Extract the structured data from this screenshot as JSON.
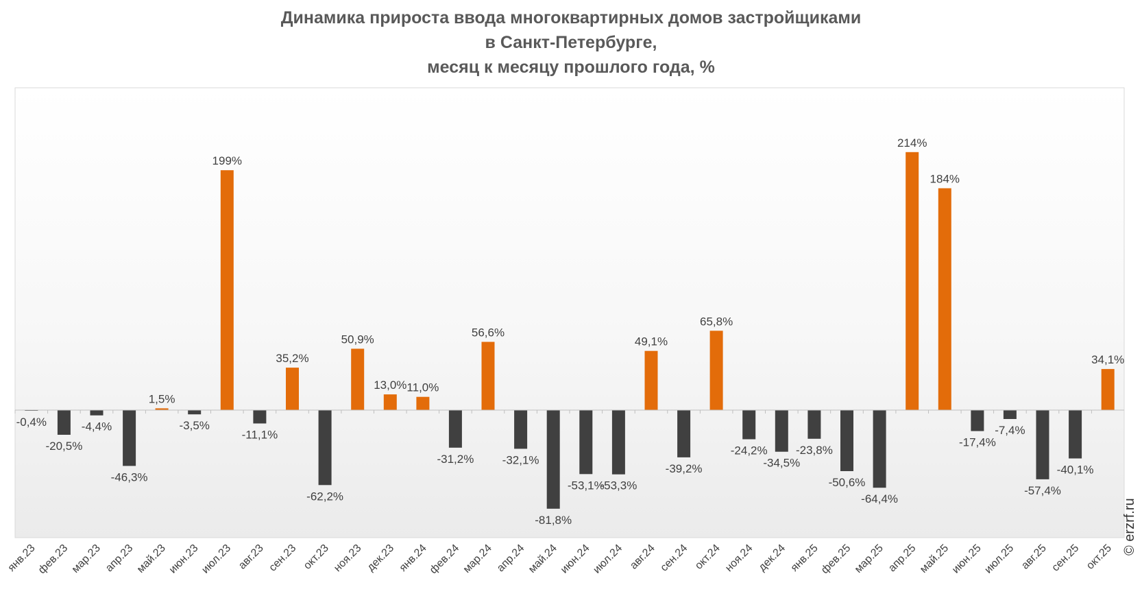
{
  "title": {
    "line1": "Динамика прироста ввода многоквартирных домов застройщиками",
    "line2": "в Санкт-Петербурге,",
    "line3": "месяц к месяцу прошлого года, %"
  },
  "watermark": "© erzrf.ru",
  "colors": {
    "positive": "#E36C0A",
    "negative": "#404040",
    "label": "#404040"
  },
  "chart_data": {
    "type": "bar",
    "title": "Динамика прироста ввода многоквартирных домов застройщиками в Санкт-Петербурге, месяц к месяцу прошлого года, %",
    "ylim": [
      -100,
      240
    ],
    "grid": false,
    "legend": "none",
    "categories": [
      "янв.23",
      "фев.23",
      "мар.23",
      "апр.23",
      "май.23",
      "июн.23",
      "июл.23",
      "авг.23",
      "сен.23",
      "окт.23",
      "ноя.23",
      "дек.23",
      "янв.24",
      "фев.24",
      "мар.24",
      "апр.24",
      "май.24",
      "июн.24",
      "июл.24",
      "авг.24",
      "сен.24",
      "окт.24",
      "ноя.24",
      "дек.24",
      "янв.25",
      "фев.25",
      "мар.25",
      "апр.25",
      "май.25",
      "июн.25",
      "июл.25",
      "авг.25",
      "сен.25",
      "окт.25"
    ],
    "values": [
      -0.4,
      -20.5,
      -4.4,
      -46.3,
      1.5,
      -3.5,
      199,
      -11.1,
      35.2,
      -62.2,
      50.9,
      13.0,
      11.0,
      -31.2,
      56.6,
      -32.1,
      -81.8,
      -53.1,
      -53.3,
      49.1,
      -39.2,
      65.8,
      -24.2,
      -34.5,
      -23.8,
      -50.6,
      -64.4,
      214,
      184,
      -17.4,
      -7.4,
      -57.4,
      -40.1,
      34.1
    ],
    "labels": [
      "-0,4%",
      "-20,5%",
      "-4,4%",
      "-46,3%",
      "1,5%",
      "-3,5%",
      "199%",
      "-11,1%",
      "35,2%",
      "-62,2%",
      "50,9%",
      "13,0%",
      "11,0%",
      "-31,2%",
      "56,6%",
      "-32,1%",
      "-81,8%",
      "-53,1%",
      "-53,3%",
      "49,1%",
      "-39,2%",
      "65,8%",
      "-24,2%",
      "-34,5%",
      "-23,8%",
      "-50,6%",
      "-64,4%",
      "214%",
      "184%",
      "-17,4%",
      "-7,4%",
      "-57,4%",
      "-40,1%",
      "34,1%"
    ]
  }
}
